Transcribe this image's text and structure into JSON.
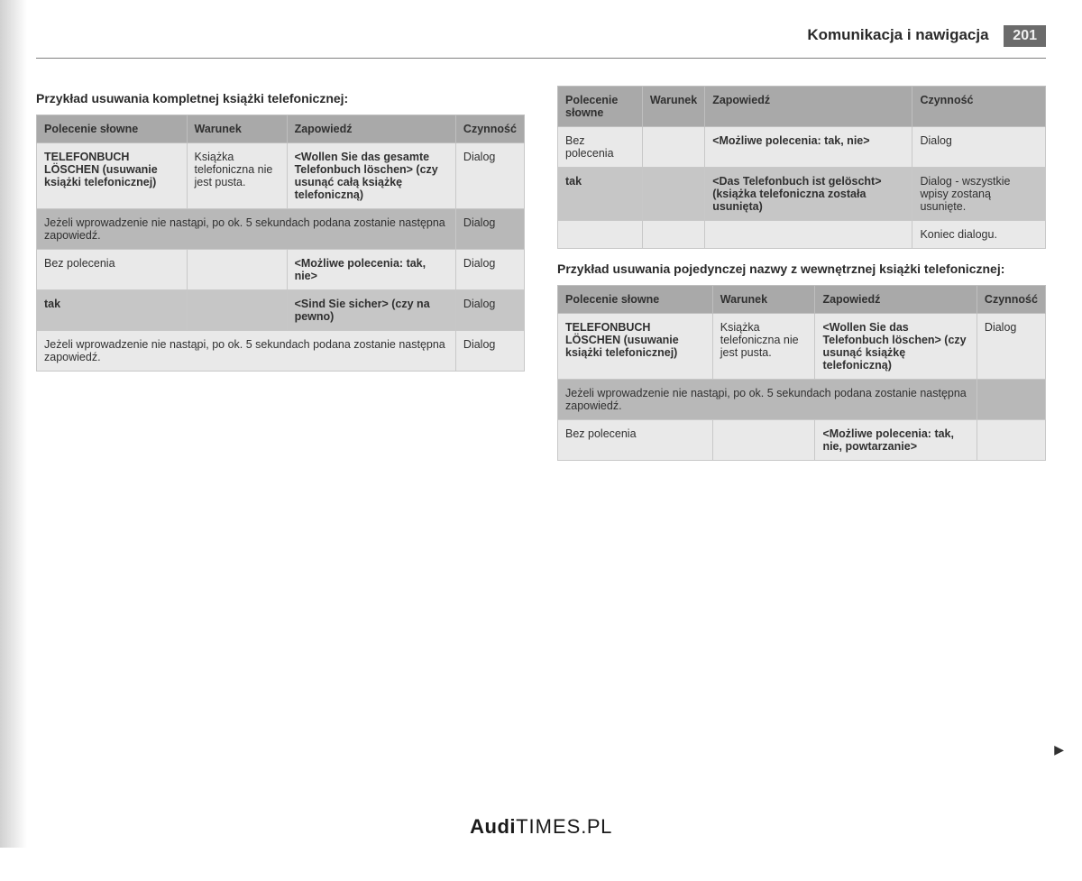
{
  "header": {
    "title": "Komunikacja i nawigacja",
    "page_number": "201"
  },
  "left": {
    "title": "Przykład usuwania kompletnej książki telefonicznej:",
    "table": {
      "headers": [
        "Polecenie słowne",
        "Warunek",
        "Zapowiedź",
        "Czynność"
      ],
      "rows": [
        {
          "shade": "light",
          "cells": [
            {
              "t": "TELEFONBUCH LÖSCHEN (usuwanie książki telefonicznej)",
              "b": true
            },
            {
              "t": "Książka telefoniczna nie jest pusta."
            },
            {
              "t": "<Wollen Sie das gesamte Telefonbuch löschen> (czy usunąć całą książkę telefoniczną)",
              "b": true
            },
            {
              "t": "Dialog"
            }
          ]
        },
        {
          "shade": "dark",
          "span3": true,
          "spantext": "Jeżeli wprowadzenie nie nastąpi, po ok. 5 sekundach podana zostanie następna zapowiedź.",
          "last": "Dialog"
        },
        {
          "shade": "light",
          "cells": [
            {
              "t": "Bez polecenia"
            },
            {
              "t": ""
            },
            {
              "t": "<Możliwe polecenia: tak, nie>",
              "b": true
            },
            {
              "t": "Dialog"
            }
          ]
        },
        {
          "shade": "dark2",
          "cells": [
            {
              "t": "tak",
              "b": true
            },
            {
              "t": ""
            },
            {
              "t": "<Sind Sie sicher> (czy na pewno)",
              "b": true
            },
            {
              "t": "Dialog"
            }
          ]
        },
        {
          "shade": "light",
          "span3": true,
          "spantext": "Jeżeli wprowadzenie nie nastąpi, po ok. 5 sekundach podana zostanie następna zapowiedź.",
          "last": "Dialog"
        }
      ]
    }
  },
  "right_top": {
    "table": {
      "headers": [
        "Polecenie słowne",
        "Warunek",
        "Zapowiedź",
        "Czynność"
      ],
      "rows": [
        {
          "shade": "light",
          "cells": [
            {
              "t": "Bez polecenia"
            },
            {
              "t": ""
            },
            {
              "t": "<Możliwe polecenia: tak, nie>",
              "b": true
            },
            {
              "t": "Dialog"
            }
          ]
        },
        {
          "shade": "dark2",
          "cells": [
            {
              "t": "tak",
              "b": true
            },
            {
              "t": ""
            },
            {
              "t": "<Das Telefonbuch ist gelöscht> (książka telefoniczna została usunięta)",
              "b": true
            },
            {
              "t": "Dialog - wszystkie wpisy zostaną usunięte."
            }
          ]
        },
        {
          "shade": "light",
          "cells": [
            {
              "t": ""
            },
            {
              "t": ""
            },
            {
              "t": ""
            },
            {
              "t": "Koniec dialogu."
            }
          ]
        }
      ]
    }
  },
  "right_bottom": {
    "title": "Przykład usuwania pojedynczej nazwy z wewnętrznej książki telefonicznej:",
    "table": {
      "headers": [
        "Polecenie słowne",
        "Warunek",
        "Zapowiedź",
        "Czynność"
      ],
      "rows": [
        {
          "shade": "light",
          "cells": [
            {
              "t": "TELEFONBUCH LÖSCHEN (usuwanie książki telefonicznej)",
              "b": true
            },
            {
              "t": "Książka telefoniczna nie jest pusta."
            },
            {
              "t": "<Wollen Sie das Telefonbuch löschen> (czy usunąć książkę telefoniczną)",
              "b": true
            },
            {
              "t": "Dialog"
            }
          ]
        },
        {
          "shade": "dark",
          "span3": true,
          "spantext": "Jeżeli wprowadzenie nie nastąpi, po ok. 5 sekundach podana zostanie następna zapowiedź.",
          "last": ""
        },
        {
          "shade": "light",
          "cells": [
            {
              "t": "Bez polecenia"
            },
            {
              "t": ""
            },
            {
              "t": "<Możliwe polecenia: tak, nie, powtarzanie>",
              "b": true
            },
            {
              "t": ""
            }
          ]
        }
      ]
    }
  },
  "footer": {
    "brand_bold": "Audi",
    "brand_thin": "TIMES",
    "suffix": ".PL"
  },
  "colors": {
    "header_row": "#a9a9a9",
    "row_light": "#e9e9e9",
    "row_dark": "#b8b8b8",
    "row_dark2": "#c6c6c6",
    "text": "#303030",
    "border": "#c8c8c8"
  }
}
